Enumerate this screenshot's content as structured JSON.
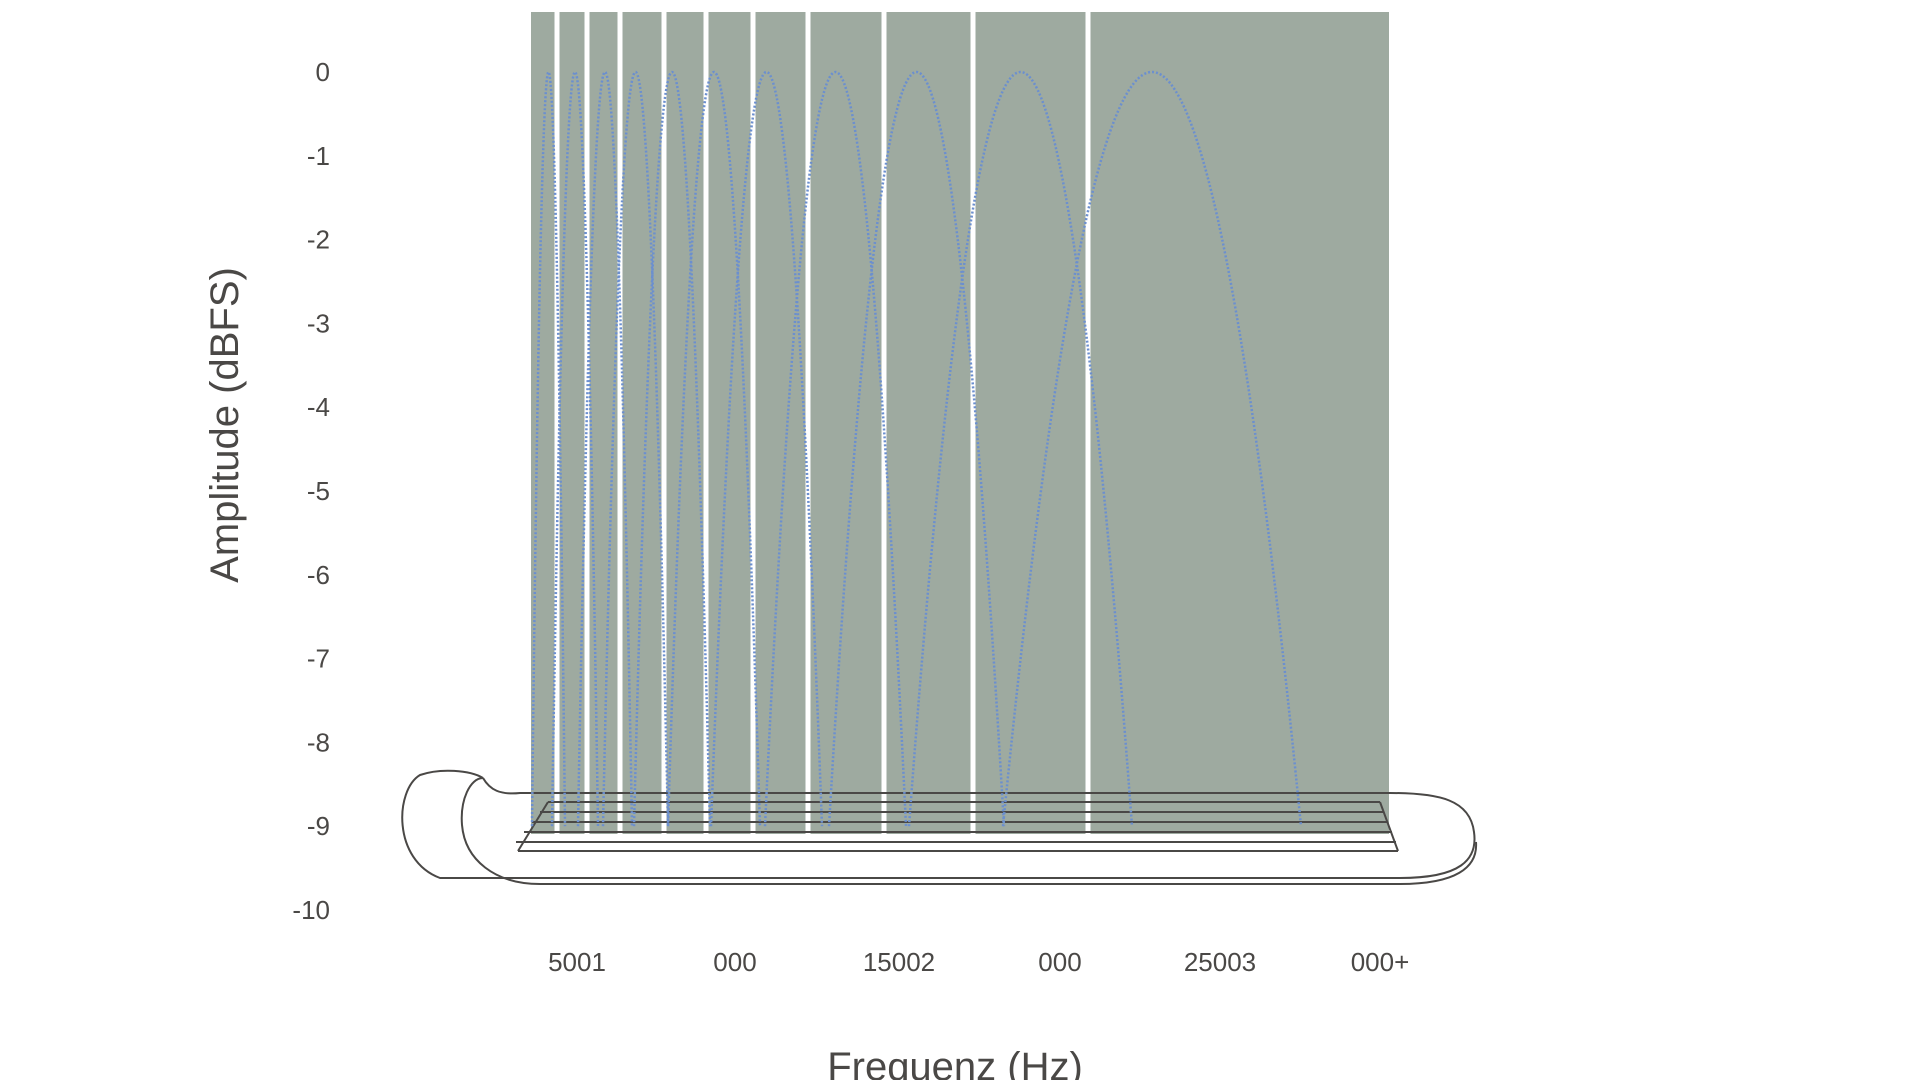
{
  "chart_data": {
    "type": "line",
    "xlabel": "Frequenz (Hz)",
    "ylabel": "Amplitude (dBFS)",
    "ylim": [
      -10,
      0
    ],
    "y_ticks": [
      "0",
      "-1",
      "-2",
      "-3",
      "-4",
      "-5",
      "-6",
      "-7",
      "-8",
      "-9",
      "-10"
    ],
    "x_tick_labels": [
      "5001",
      "000",
      "15002",
      "000",
      "25003",
      "000+"
    ],
    "grid": false,
    "background_color": "#9eaaa0",
    "band_gap_color": "#ffffff",
    "line_color": "#6b8fcf",
    "line_style": "dotted",
    "outline_color": "#4a4846",
    "series": [
      {
        "values": [
          -9,
          0,
          -9
        ]
      },
      {
        "values": [
          -9,
          0,
          -9
        ]
      },
      {
        "values": [
          -9,
          0,
          -9
        ]
      },
      {
        "values": [
          -9,
          0,
          -9
        ]
      },
      {
        "values": [
          -9,
          0,
          -9
        ]
      },
      {
        "values": [
          -9,
          0,
          -9
        ]
      },
      {
        "values": [
          -9,
          0,
          -9
        ]
      },
      {
        "values": [
          -9,
          0,
          -9
        ]
      },
      {
        "values": [
          -9,
          0,
          -9
        ]
      },
      {
        "values": [
          -9,
          0,
          -9
        ]
      },
      {
        "values": [
          -9,
          0,
          -9
        ]
      }
    ]
  }
}
